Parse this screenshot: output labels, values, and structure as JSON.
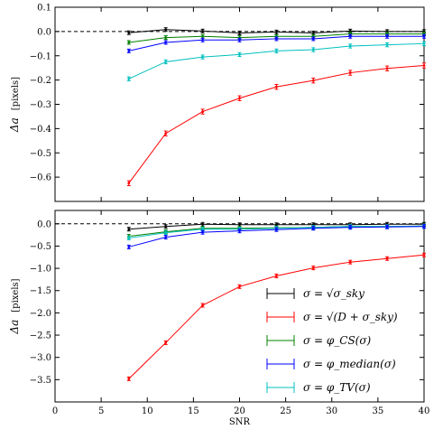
{
  "chart_data": {
    "type": "line",
    "shared_x": {
      "label": "SNR",
      "lim": [
        0,
        40
      ],
      "ticks": [
        0,
        5,
        10,
        15,
        20,
        25,
        30,
        35,
        40
      ],
      "tick_labels": [
        "0",
        "5",
        "10",
        "15",
        "20",
        "25",
        "30",
        "35",
        "40"
      ]
    },
    "x": [
      8,
      12,
      16,
      20,
      24,
      28,
      32,
      36,
      40
    ],
    "legend": {
      "placement": "lower-right of bottom panel",
      "entries": [
        {
          "label": "σ = √σ_sky",
          "color": "#000000"
        },
        {
          "label": "σ = √(D + σ_sky)",
          "color": "#ff0000"
        },
        {
          "label": "σ = φ_CS(σ)",
          "color": "#008000"
        },
        {
          "label": "σ = φ_median(σ)",
          "color": "#0000ff"
        },
        {
          "label": "σ = φ_TV(σ)",
          "color": "#00bfbf"
        }
      ]
    },
    "panels": [
      {
        "ylabel": "Δa",
        "yunit": "[pixels]",
        "ylim": [
          -0.7,
          0.1
        ],
        "yticks": [
          0.1,
          0.0,
          -0.1,
          -0.2,
          -0.3,
          -0.4,
          -0.5,
          -0.6
        ],
        "ytick_labels": [
          "0.1",
          "0.0",
          "−0.1",
          "−0.2",
          "−0.3",
          "−0.4",
          "−0.5",
          "−0.6"
        ],
        "reference_line": 0.0,
        "series": [
          {
            "color": "#000000",
            "values": [
              -0.005,
              0.008,
              0.002,
              -0.006,
              -0.002,
              -0.006,
              0.002,
              0.0,
              0.0
            ],
            "err": 0.006
          },
          {
            "color": "#008000",
            "values": [
              -0.045,
              -0.025,
              -0.02,
              -0.025,
              -0.02,
              -0.02,
              -0.01,
              -0.01,
              -0.01
            ],
            "err": 0.006
          },
          {
            "color": "#0000ff",
            "values": [
              -0.08,
              -0.045,
              -0.035,
              -0.035,
              -0.03,
              -0.03,
              -0.02,
              -0.02,
              -0.02
            ],
            "err": 0.006
          },
          {
            "color": "#00bfbf",
            "values": [
              -0.195,
              -0.125,
              -0.105,
              -0.095,
              -0.08,
              -0.075,
              -0.06,
              -0.055,
              -0.05
            ],
            "err": 0.008
          },
          {
            "color": "#ff0000",
            "values": [
              -0.625,
              -0.42,
              -0.33,
              -0.275,
              -0.228,
              -0.202,
              -0.17,
              -0.152,
              -0.14
            ],
            "err": 0.01
          }
        ]
      },
      {
        "ylabel": "Δa",
        "yunit": "[pixels]",
        "ylim": [
          -4.0,
          0.3
        ],
        "yticks": [
          0.0,
          -0.5,
          -1.0,
          -1.5,
          -2.0,
          -2.5,
          -3.0,
          -3.5
        ],
        "ytick_labels": [
          "0.0",
          "−0.5",
          "−1.0",
          "−1.5",
          "−2.0",
          "−2.5",
          "−3.0",
          "−3.5"
        ],
        "reference_line": 0.0,
        "series": [
          {
            "color": "#000000",
            "values": [
              -0.12,
              -0.06,
              -0.01,
              -0.02,
              -0.02,
              -0.02,
              -0.02,
              -0.01,
              -0.01
            ],
            "err": 0.02
          },
          {
            "color": "#008000",
            "values": [
              -0.28,
              -0.18,
              -0.1,
              -0.1,
              -0.09,
              -0.08,
              -0.06,
              -0.06,
              -0.05
            ],
            "err": 0.02
          },
          {
            "color": "#00bfbf",
            "values": [
              -0.32,
              -0.2,
              -0.12,
              -0.12,
              -0.1,
              -0.08,
              -0.06,
              -0.06,
              -0.05
            ],
            "err": 0.02
          },
          {
            "color": "#0000ff",
            "values": [
              -0.52,
              -0.3,
              -0.19,
              -0.16,
              -0.13,
              -0.1,
              -0.08,
              -0.07,
              -0.06
            ],
            "err": 0.02
          },
          {
            "color": "#ff0000",
            "values": [
              -3.48,
              -2.67,
              -1.83,
              -1.41,
              -1.17,
              -0.99,
              -0.86,
              -0.78,
              -0.7
            ],
            "err": 0.03
          }
        ]
      }
    ]
  }
}
